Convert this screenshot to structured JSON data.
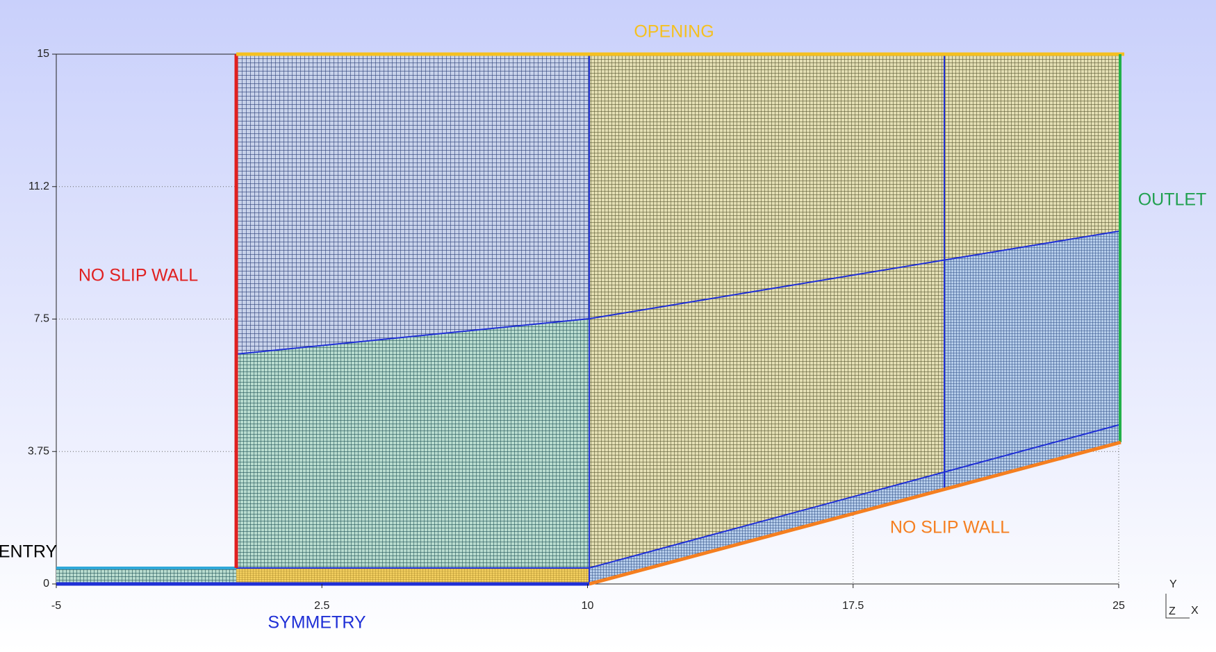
{
  "axes": {
    "xlim": [
      -5,
      25
    ],
    "ylim": [
      0,
      15
    ],
    "xticks": [
      -5,
      2.5,
      10,
      17.5,
      25
    ],
    "yticks": [
      0,
      3.75,
      7.5,
      {
        "value": 11.25,
        "label": "11.2"
      },
      15
    ]
  },
  "boundaries": {
    "opening": "OPENING",
    "outlet": "OUTLET",
    "left_wall": "NO SLIP WALL",
    "bottom_wall": "NO SLIP WALL",
    "entry": "ENTRY",
    "symmetry": "SYMMETRY"
  },
  "triad": {
    "y": "Y",
    "z": "Z",
    "x": "X"
  }
}
